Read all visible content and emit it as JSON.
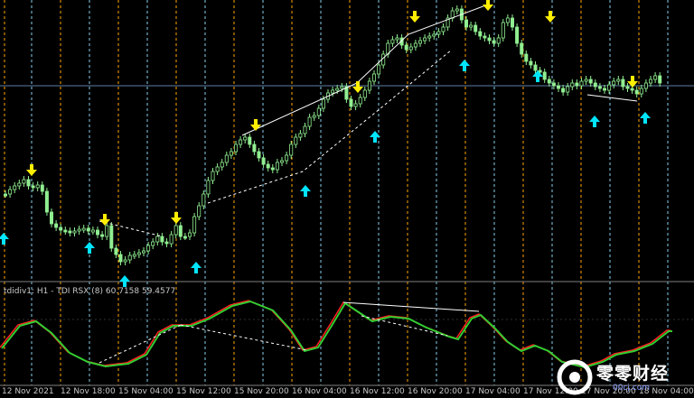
{
  "colors": {
    "background": "#000000",
    "candle": "#90ee90",
    "separator": "#ffa500",
    "daySeparator": "#87ceeb",
    "upArrow": "#00e5ff",
    "downArrow": "#ffee00",
    "trend": "#ffffff",
    "tdiRed": "#ff2020",
    "tdiGreen": "#32cd32"
  },
  "indicator": {
    "label": "tdidiv1: H1 - TDI RSX (8) 60.7158 59.4577"
  },
  "time_axis": {
    "labels": [
      "12 Nov 2021",
      "12 Nov 18:00",
      "15 Nov 04:00",
      "15 Nov 12:00",
      "15 Nov 20:00",
      "16 Nov 04:00",
      "16 Nov 12:00",
      "16 Nov 20:00",
      "17 Nov 04:00",
      "17 Nov 12:00",
      "17 Nov 20:00",
      "18 Nov 04:00"
    ]
  },
  "watermark": {
    "text": "零零财经",
    "url": "00cj.com"
  },
  "icons": [
    "arrow-up-icon",
    "arrow-down-icon",
    "watermark-logo-icon"
  ]
}
